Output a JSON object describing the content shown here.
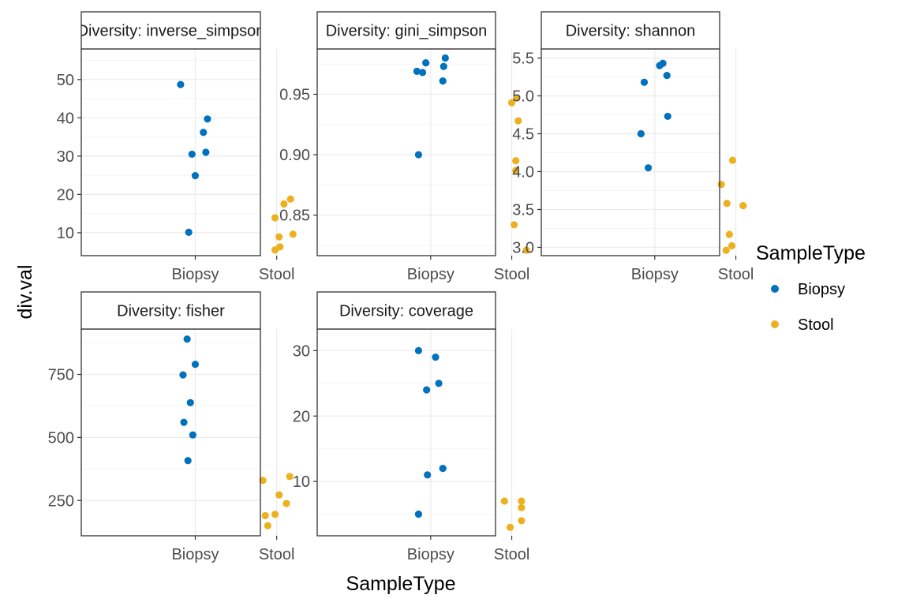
{
  "colors": {
    "Biopsy": "#0072BD",
    "Stool": "#EDB120",
    "grid_major": "#EBEBEB",
    "grid_minor": "#F5F5F5",
    "border": "#333333",
    "strip_fill": "#FFFFFF"
  },
  "xlabel": "SampleType",
  "ylabel": "div.val",
  "legend": {
    "title": "SampleType",
    "items": [
      "Biopsy",
      "Stool"
    ],
    "placement": "right"
  },
  "chart_data": [
    {
      "type": "scatter",
      "title": "Diversity: inverse_simpson",
      "categories": [
        "Biopsy",
        "Stool"
      ],
      "ylim": [
        4,
        58
      ],
      "yticks": [
        10,
        20,
        30,
        40,
        50
      ],
      "ytick_labels": [
        "10",
        "20",
        "30",
        "40",
        "50"
      ],
      "series": [
        {
          "name": "Biopsy",
          "points": [
            [
              -0.18,
              48.7
            ],
            [
              0.15,
              39.7
            ],
            [
              0.1,
              36.2
            ],
            [
              0.13,
              31.0
            ],
            [
              -0.04,
              30.5
            ],
            [
              0.0,
              24.9
            ],
            [
              -0.08,
              10.1
            ]
          ]
        },
        {
          "name": "Stool",
          "points": [
            [
              0.17,
              18.8
            ],
            [
              0.09,
              17.5
            ],
            [
              -0.02,
              13.9
            ],
            [
              0.03,
              8.9
            ],
            [
              0.2,
              9.6
            ],
            [
              0.04,
              6.3
            ],
            [
              -0.02,
              5.5
            ]
          ]
        }
      ]
    },
    {
      "type": "scatter",
      "title": "Diversity: gini_simpson",
      "categories": [
        "Biopsy",
        "Stool"
      ],
      "ylim": [
        0.8165,
        0.9875
      ],
      "yticks": [
        0.85,
        0.9,
        0.95
      ],
      "ytick_labels": [
        "0.85",
        "0.90",
        "0.95"
      ],
      "series": [
        {
          "name": "Biopsy",
          "points": [
            [
              0.18,
              0.98
            ],
            [
              -0.06,
              0.976
            ],
            [
              0.16,
              0.973
            ],
            [
              -0.17,
              0.969
            ],
            [
              -0.1,
              0.968
            ],
            [
              0.15,
              0.961
            ],
            [
              -0.15,
              0.9
            ]
          ]
        },
        {
          "name": "Stool",
          "points": [
            [
              0.06,
              0.947
            ],
            [
              0.0,
              0.943
            ],
            [
              0.08,
              0.928
            ],
            [
              0.05,
              0.895
            ],
            [
              0.05,
              0.887
            ],
            [
              0.03,
              0.842
            ],
            [
              0.18,
              0.821
            ]
          ]
        }
      ]
    },
    {
      "type": "scatter",
      "title": "Diversity: shannon",
      "categories": [
        "Biopsy",
        "Stool"
      ],
      "ylim": [
        2.89,
        5.62
      ],
      "yticks": [
        3.0,
        3.5,
        4.0,
        4.5,
        5.0,
        5.5
      ],
      "ytick_labels": [
        "3.0",
        "3.5",
        "4.0",
        "4.5",
        "5.0",
        "5.5"
      ],
      "series": [
        {
          "name": "Biopsy",
          "points": [
            [
              0.1,
              5.43
            ],
            [
              0.06,
              5.4
            ],
            [
              0.15,
              5.27
            ],
            [
              -0.13,
              5.18
            ],
            [
              0.16,
              4.73
            ],
            [
              -0.17,
              4.5
            ],
            [
              -0.08,
              4.05
            ]
          ]
        },
        {
          "name": "Stool",
          "points": [
            [
              -0.04,
              4.15
            ],
            [
              -0.18,
              3.83
            ],
            [
              -0.11,
              3.58
            ],
            [
              0.09,
              3.55
            ],
            [
              -0.08,
              3.17
            ],
            [
              -0.05,
              3.02
            ],
            [
              -0.12,
              2.96
            ]
          ]
        }
      ]
    },
    {
      "type": "scatter",
      "title": "Diversity: fisher",
      "categories": [
        "Biopsy",
        "Stool"
      ],
      "ylim": [
        110,
        930
      ],
      "yticks": [
        250,
        500,
        750
      ],
      "ytick_labels": [
        "250",
        "500",
        "750"
      ],
      "series": [
        {
          "name": "Biopsy",
          "points": [
            [
              -0.1,
              890
            ],
            [
              0.0,
              790
            ],
            [
              -0.15,
              748
            ],
            [
              -0.06,
              638
            ],
            [
              -0.14,
              560
            ],
            [
              -0.03,
              510
            ],
            [
              -0.09,
              408
            ]
          ]
        },
        {
          "name": "Stool",
          "points": [
            [
              0.16,
              345
            ],
            [
              -0.17,
              330
            ],
            [
              0.03,
              272
            ],
            [
              0.12,
              238
            ],
            [
              -0.02,
              195
            ],
            [
              -0.14,
              190
            ],
            [
              -0.11,
              150
            ]
          ]
        }
      ]
    },
    {
      "type": "scatter",
      "title": "Diversity: coverage",
      "categories": [
        "Biopsy",
        "Stool"
      ],
      "ylim": [
        1.7,
        33.3
      ],
      "yticks": [
        10,
        20,
        30
      ],
      "ytick_labels": [
        "10",
        "20",
        "30"
      ],
      "series": [
        {
          "name": "Biopsy",
          "points": [
            [
              -0.15,
              30
            ],
            [
              0.06,
              29
            ],
            [
              0.1,
              25
            ],
            [
              -0.05,
              24
            ],
            [
              0.15,
              12
            ],
            [
              -0.04,
              11
            ],
            [
              -0.15,
              5
            ]
          ]
        },
        {
          "name": "Stool",
          "points": [
            [
              0.12,
              7
            ],
            [
              -0.09,
              7
            ],
            [
              0.12,
              6
            ],
            [
              0.12,
              4
            ],
            [
              -0.02,
              3
            ]
          ]
        }
      ]
    }
  ]
}
